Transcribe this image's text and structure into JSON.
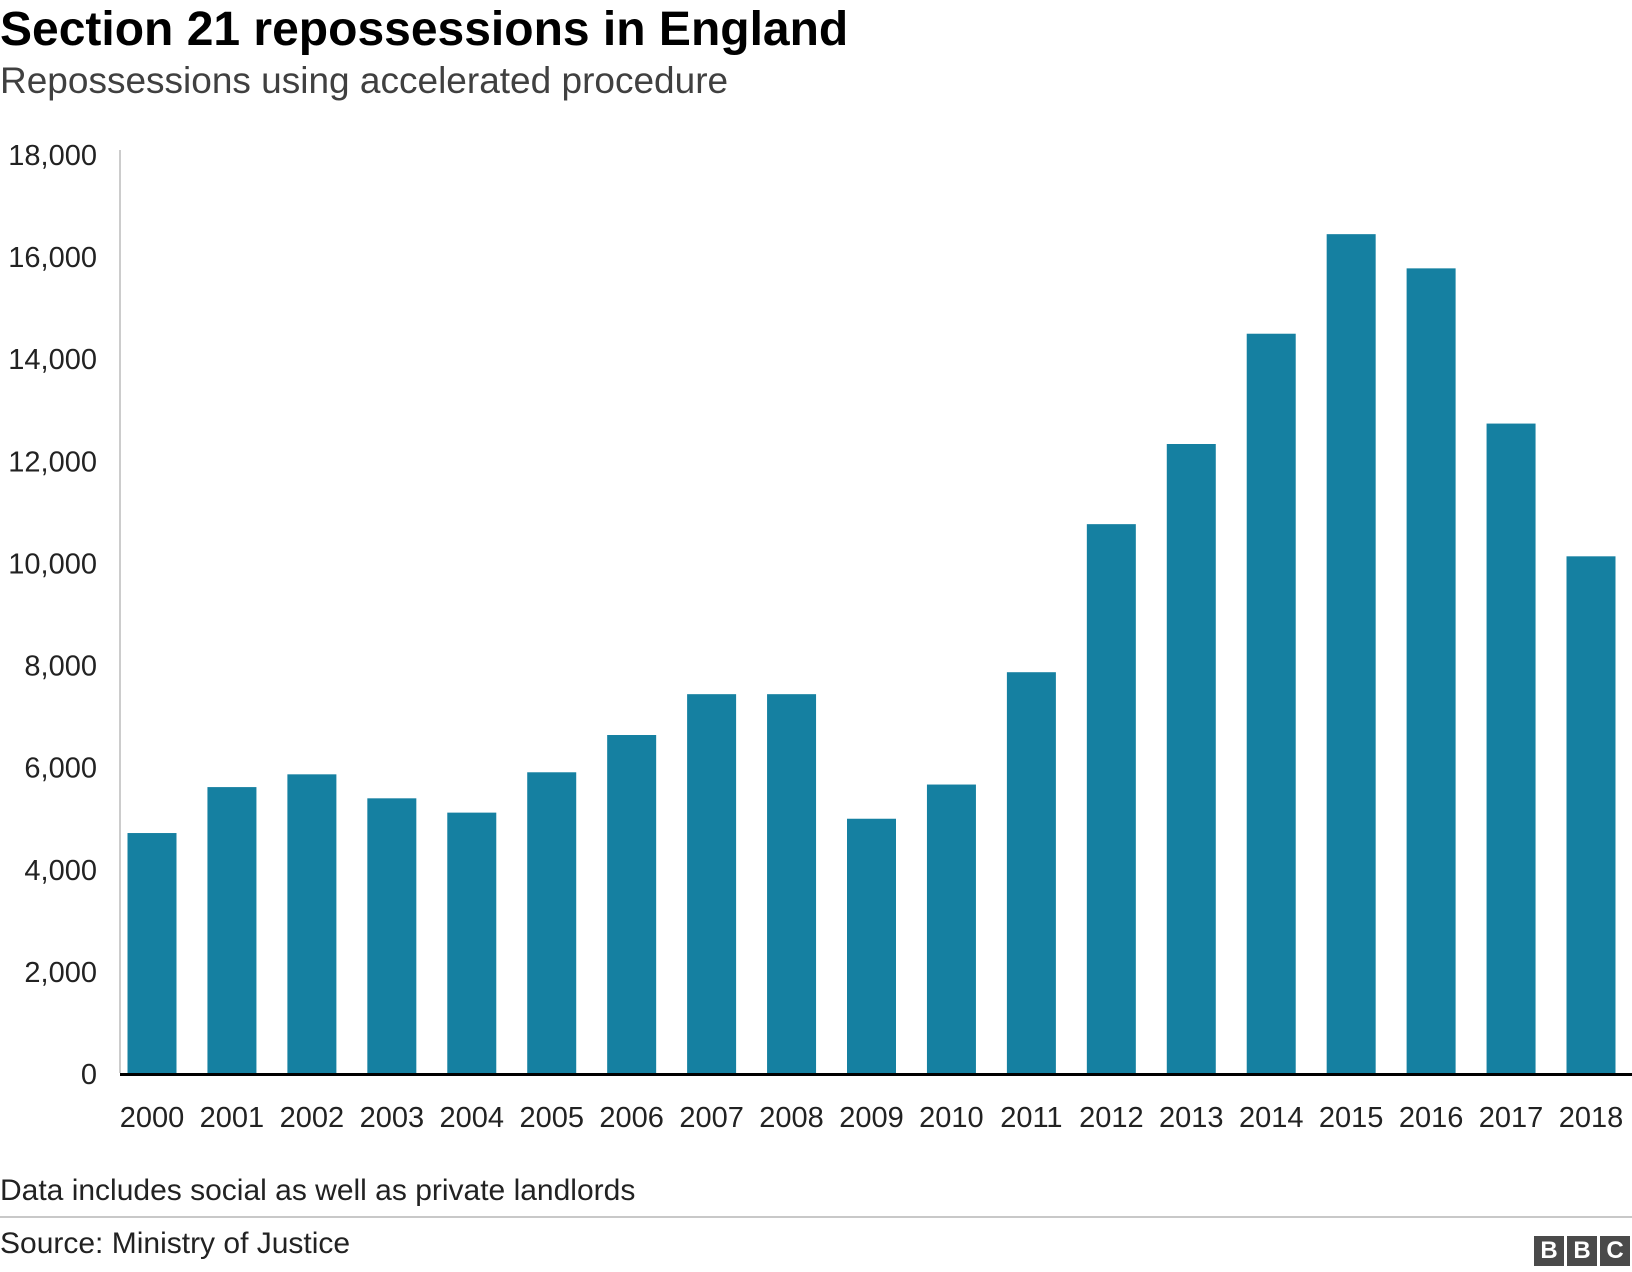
{
  "title": "Section 21 repossessions in England",
  "subtitle": "Repossessions using accelerated procedure",
  "note": "Data includes social as well as private landlords",
  "source": "Source: Ministry of Justice",
  "logo": [
    "B",
    "B",
    "C"
  ],
  "colors": {
    "bar": "#1580a1",
    "axis": "#000000",
    "text": "#222222"
  },
  "chart_data": {
    "type": "bar",
    "title": "Section 21 repossessions in England",
    "subtitle": "Repossessions using accelerated procedure",
    "xlabel": "",
    "ylabel": "",
    "ylim": [
      0,
      18000
    ],
    "yticks": [
      0,
      2000,
      4000,
      6000,
      8000,
      10000,
      12000,
      14000,
      16000,
      18000
    ],
    "ytick_labels": [
      "0",
      "2,000",
      "4,000",
      "6,000",
      "8,000",
      "10,000",
      "12,000",
      "14,000",
      "16,000",
      "18,000"
    ],
    "grid": false,
    "categories": [
      "2000",
      "2001",
      "2002",
      "2003",
      "2004",
      "2005",
      "2006",
      "2007",
      "2008",
      "2009",
      "2010",
      "2011",
      "2012",
      "2013",
      "2014",
      "2015",
      "2016",
      "2017",
      "2018"
    ],
    "values": [
      4700,
      5600,
      5850,
      5380,
      5100,
      5890,
      6620,
      7420,
      7420,
      4980,
      5650,
      7850,
      10750,
      12320,
      14480,
      16430,
      15760,
      12720,
      10120
    ]
  }
}
